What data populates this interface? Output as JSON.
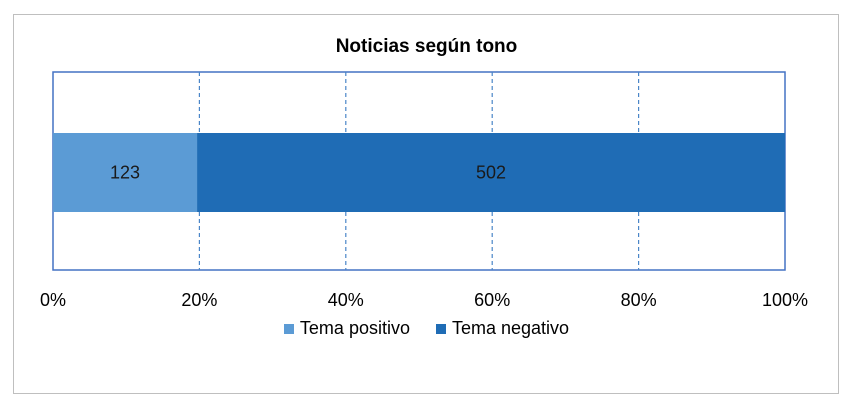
{
  "chart_data": {
    "type": "bar",
    "orientation": "horizontal",
    "stacked": "percent",
    "title": "Noticias según tono",
    "categories": [
      ""
    ],
    "series": [
      {
        "name": "Tema positivo",
        "values": [
          123
        ],
        "color": "#5b9bd5"
      },
      {
        "name": "Tema negativo",
        "values": [
          502
        ],
        "color": "#1f6cb5"
      }
    ],
    "xlim": [
      0,
      100
    ],
    "x_ticks": [
      "0%",
      "20%",
      "40%",
      "60%",
      "80%",
      "100%"
    ],
    "grid": "vertical dashed",
    "legend": "bottom"
  }
}
